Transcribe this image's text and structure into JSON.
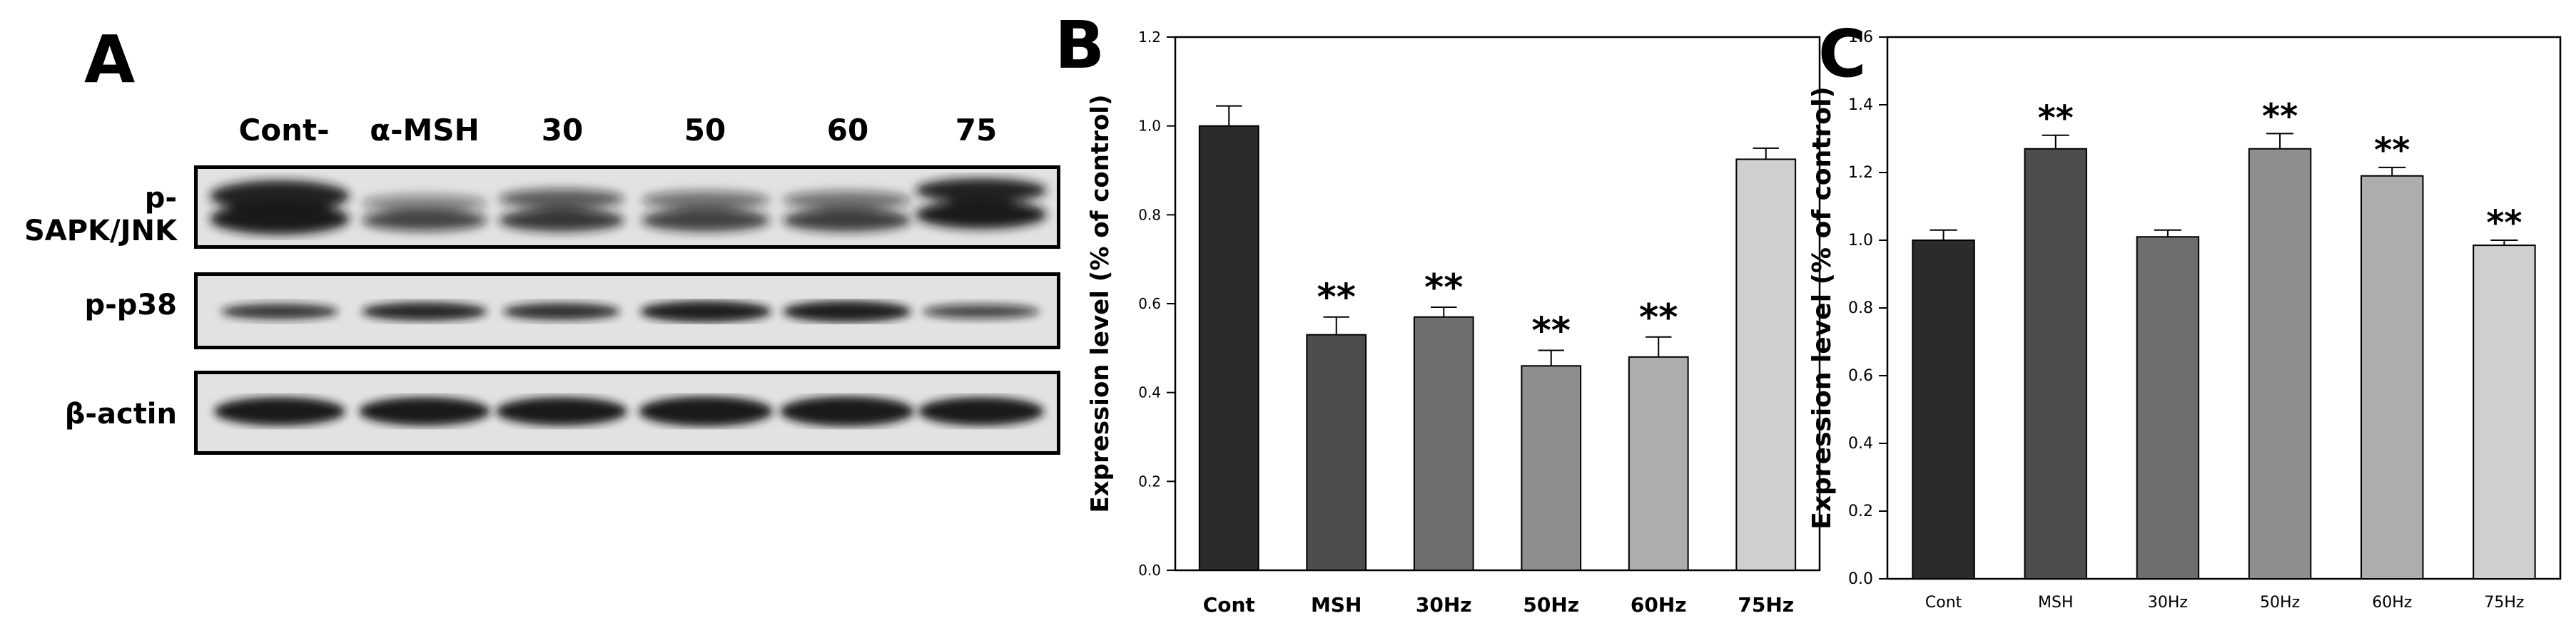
{
  "panels": {
    "A": "A",
    "B": "B",
    "C": "C"
  },
  "blot": {
    "lanes": [
      "Cont-",
      "α-MSH",
      "30",
      "50",
      "60",
      "75"
    ],
    "rows": [
      {
        "label": [
          "p-",
          "SAPK/JNK"
        ]
      },
      {
        "label": [
          "p-p38"
        ]
      },
      {
        "label": [
          "β-actin"
        ]
      }
    ]
  },
  "chart_data": [
    {
      "type": "bar",
      "categories": [
        "Cont",
        "MSH",
        "30Hz",
        "50Hz",
        "60Hz",
        "75Hz"
      ],
      "values": [
        1.0,
        0.53,
        0.57,
        0.46,
        0.48,
        0.925
      ],
      "errors": [
        0.045,
        0.04,
        0.022,
        0.035,
        0.045,
        0.025
      ],
      "significance": [
        "",
        "**",
        "**",
        "**",
        "**",
        ""
      ],
      "ylabel": "Expression level (% of control)",
      "ylim": [
        0,
        1.2
      ],
      "yticks": [
        "0.0",
        "0.2",
        "0.4",
        "0.6",
        "0.8",
        "1.0",
        "1.2"
      ],
      "bar_colors": [
        "#2b2b2b",
        "#4d4d4d",
        "#6e6e6e",
        "#8e8e8e",
        "#adadad",
        "#cfcfcf"
      ]
    },
    {
      "type": "bar",
      "categories": [
        "Cont",
        "MSH",
        "30Hz",
        "50Hz",
        "60Hz",
        "75Hz"
      ],
      "values": [
        1.0,
        1.27,
        1.01,
        1.27,
        1.19,
        0.985
      ],
      "errors": [
        0.03,
        0.04,
        0.02,
        0.045,
        0.025,
        0.015
      ],
      "significance": [
        "",
        "**",
        "",
        "**",
        "**",
        "**"
      ],
      "ylabel": "Expression level (% of control)",
      "ylim": [
        0,
        1.6
      ],
      "yticks": [
        "0.0",
        "0.2",
        "0.4",
        "0.6",
        "0.8",
        "1.0",
        "1.2",
        "1.4",
        "1.6"
      ],
      "bar_colors": [
        "#2b2b2b",
        "#4d4d4d",
        "#6e6e6e",
        "#8e8e8e",
        "#adadad",
        "#cfcfcf"
      ]
    }
  ]
}
